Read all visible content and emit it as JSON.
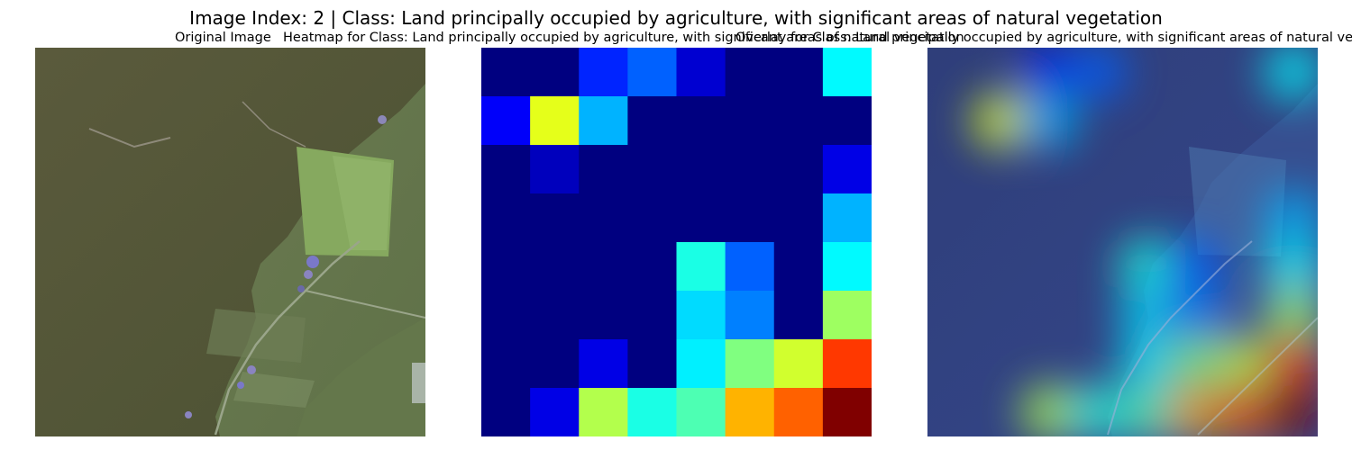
{
  "figure": {
    "title": "Image Index: 2 | Class: Land principally occupied by agriculture, with significant areas of natural vegetation"
  },
  "panels": {
    "original": {
      "title": "Original Image"
    },
    "heatmap": {
      "title": "Heatmap for Class: Land principally occupied by agriculture, with significant areas of natural vegetation"
    },
    "overlay": {
      "title": "Overlay for Class: Land principally occupied by agriculture, with significant areas of natural vegetation"
    }
  },
  "heatmap_grid": {
    "rows": 8,
    "cols": 8,
    "colormap": "jet",
    "values": [
      [
        0.0,
        0.0,
        0.16,
        0.22,
        0.08,
        0.0,
        0.0,
        0.37
      ],
      [
        0.12,
        0.6,
        0.3,
        0.0,
        0.0,
        0.0,
        0.0,
        0.0
      ],
      [
        0.0,
        0.06,
        0.0,
        0.0,
        0.0,
        0.0,
        0.0,
        0.1
      ],
      [
        0.0,
        0.0,
        0.0,
        0.0,
        0.0,
        0.0,
        0.0,
        0.3
      ],
      [
        0.0,
        0.0,
        0.0,
        0.0,
        0.4,
        0.22,
        0.0,
        0.37
      ],
      [
        0.0,
        0.0,
        0.0,
        0.0,
        0.34,
        0.25,
        0.0,
        0.53
      ],
      [
        0.0,
        0.0,
        0.1,
        0.0,
        0.36,
        0.5,
        0.58,
        0.82
      ],
      [
        0.0,
        0.1,
        0.55,
        0.4,
        0.45,
        0.7,
        0.78,
        1.0
      ]
    ]
  }
}
